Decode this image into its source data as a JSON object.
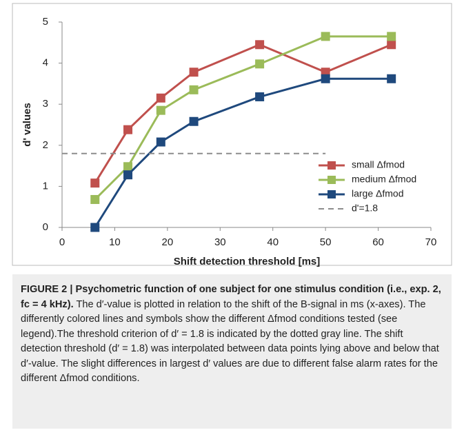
{
  "chart_data": {
    "type": "line",
    "xlabel": "Shift detection threshold [ms]",
    "ylabel": "d' values",
    "x": [
      6.25,
      12.5,
      18.75,
      25,
      37.5,
      50,
      62.5
    ],
    "series": [
      {
        "name": "small Δfmod",
        "color": "#c0504d",
        "marker": "square",
        "linestyle": "solid",
        "values": [
          1.08,
          2.38,
          3.15,
          3.78,
          4.45,
          3.78,
          4.45
        ]
      },
      {
        "name": "medium Δfmod",
        "color": "#9bbb59",
        "marker": "square",
        "linestyle": "solid",
        "values": [
          0.68,
          1.48,
          2.85,
          3.35,
          3.98,
          4.65,
          4.65
        ]
      },
      {
        "name": "large Δfmod",
        "color": "#1f497d",
        "marker": "square",
        "linestyle": "solid",
        "values": [
          0,
          1.28,
          2.08,
          2.58,
          3.18,
          3.62,
          3.62
        ]
      },
      {
        "name": "d'=1.8",
        "color": "#8c8c8c",
        "linestyle": "dashed",
        "x": [
          0,
          50
        ],
        "values": [
          1.8,
          1.8
        ]
      }
    ],
    "xlim": [
      0,
      70
    ],
    "xticks": [
      0,
      10,
      20,
      30,
      40,
      50,
      60,
      70
    ],
    "ylim": [
      0,
      5
    ],
    "yticks": [
      0,
      1,
      2,
      3,
      4,
      5
    ],
    "grid": false,
    "legend": "right"
  },
  "caption": {
    "heading": "FIGURE 2 | Psychometric function of one subject for one stimulus condition (i.e., exp. 2, fc = 4 kHz).",
    "body": "The d′-value is plotted in relation to the shift of the B-signal in ms (x-axes). The differently colored lines and symbols show the different Δfmod conditions tested (see legend).The threshold criterion of d′ = 1.8 is indicated by the dotted gray line. The shift detection threshold (d′ = 1.8) was interpolated between data points lying above and below that d′-value. The slight differences in largest d′ values are due to different false alarm rates for the different Δfmod conditions."
  }
}
